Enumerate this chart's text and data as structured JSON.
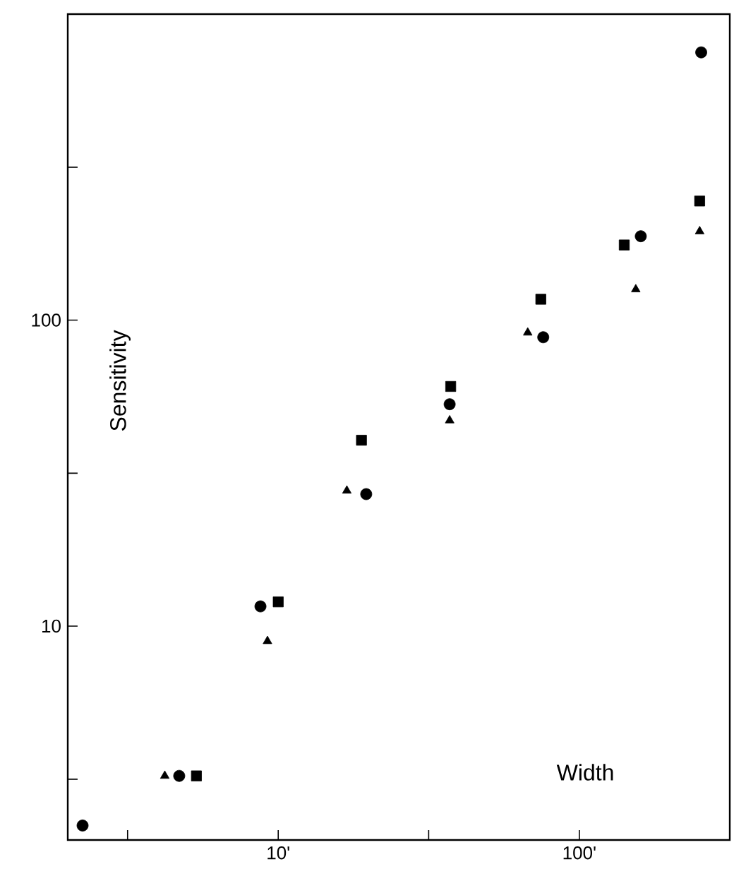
{
  "chart_data": {
    "type": "scatter",
    "xlabel": "Width",
    "ylabel": "Sensitivity",
    "log": "xy",
    "xlim": [
      2,
      316
    ],
    "ylim": [
      2,
      1000
    ],
    "xticks": [
      {
        "value": 3.16,
        "label": null
      },
      {
        "value": 10,
        "label": "10'"
      },
      {
        "value": 31.6,
        "label": null
      },
      {
        "value": 100,
        "label": "100'"
      }
    ],
    "yticks": [
      {
        "value": 3.16,
        "label": null
      },
      10,
      {
        "value": 31.6,
        "label": null
      },
      100,
      {
        "value": 316,
        "label": null
      }
    ],
    "series": [
      {
        "color": "#000000",
        "marker": "circle",
        "x": [
          2.24,
          4.69,
          8.73,
          19.6,
          37.1,
          75.9,
          160,
          254
        ],
        "values": [
          2.23,
          3.24,
          11.6,
          27.0,
          53.1,
          87.9,
          188,
          750
        ]
      },
      {
        "color": "#000000",
        "marker": "square",
        "x": [
          5.35,
          10,
          18.9,
          37.4,
          74.5,
          141,
          251
        ],
        "values": [
          3.24,
          12.0,
          40.5,
          60.7,
          117,
          176,
          245
        ]
      },
      {
        "color": "#000000",
        "marker": "triangle",
        "x": [
          4.2,
          9.21,
          16.9,
          37.1,
          67.4,
          154,
          251
        ],
        "values": [
          3.24,
          8.93,
          27.7,
          47.0,
          91.0,
          126,
          195
        ]
      }
    ]
  }
}
